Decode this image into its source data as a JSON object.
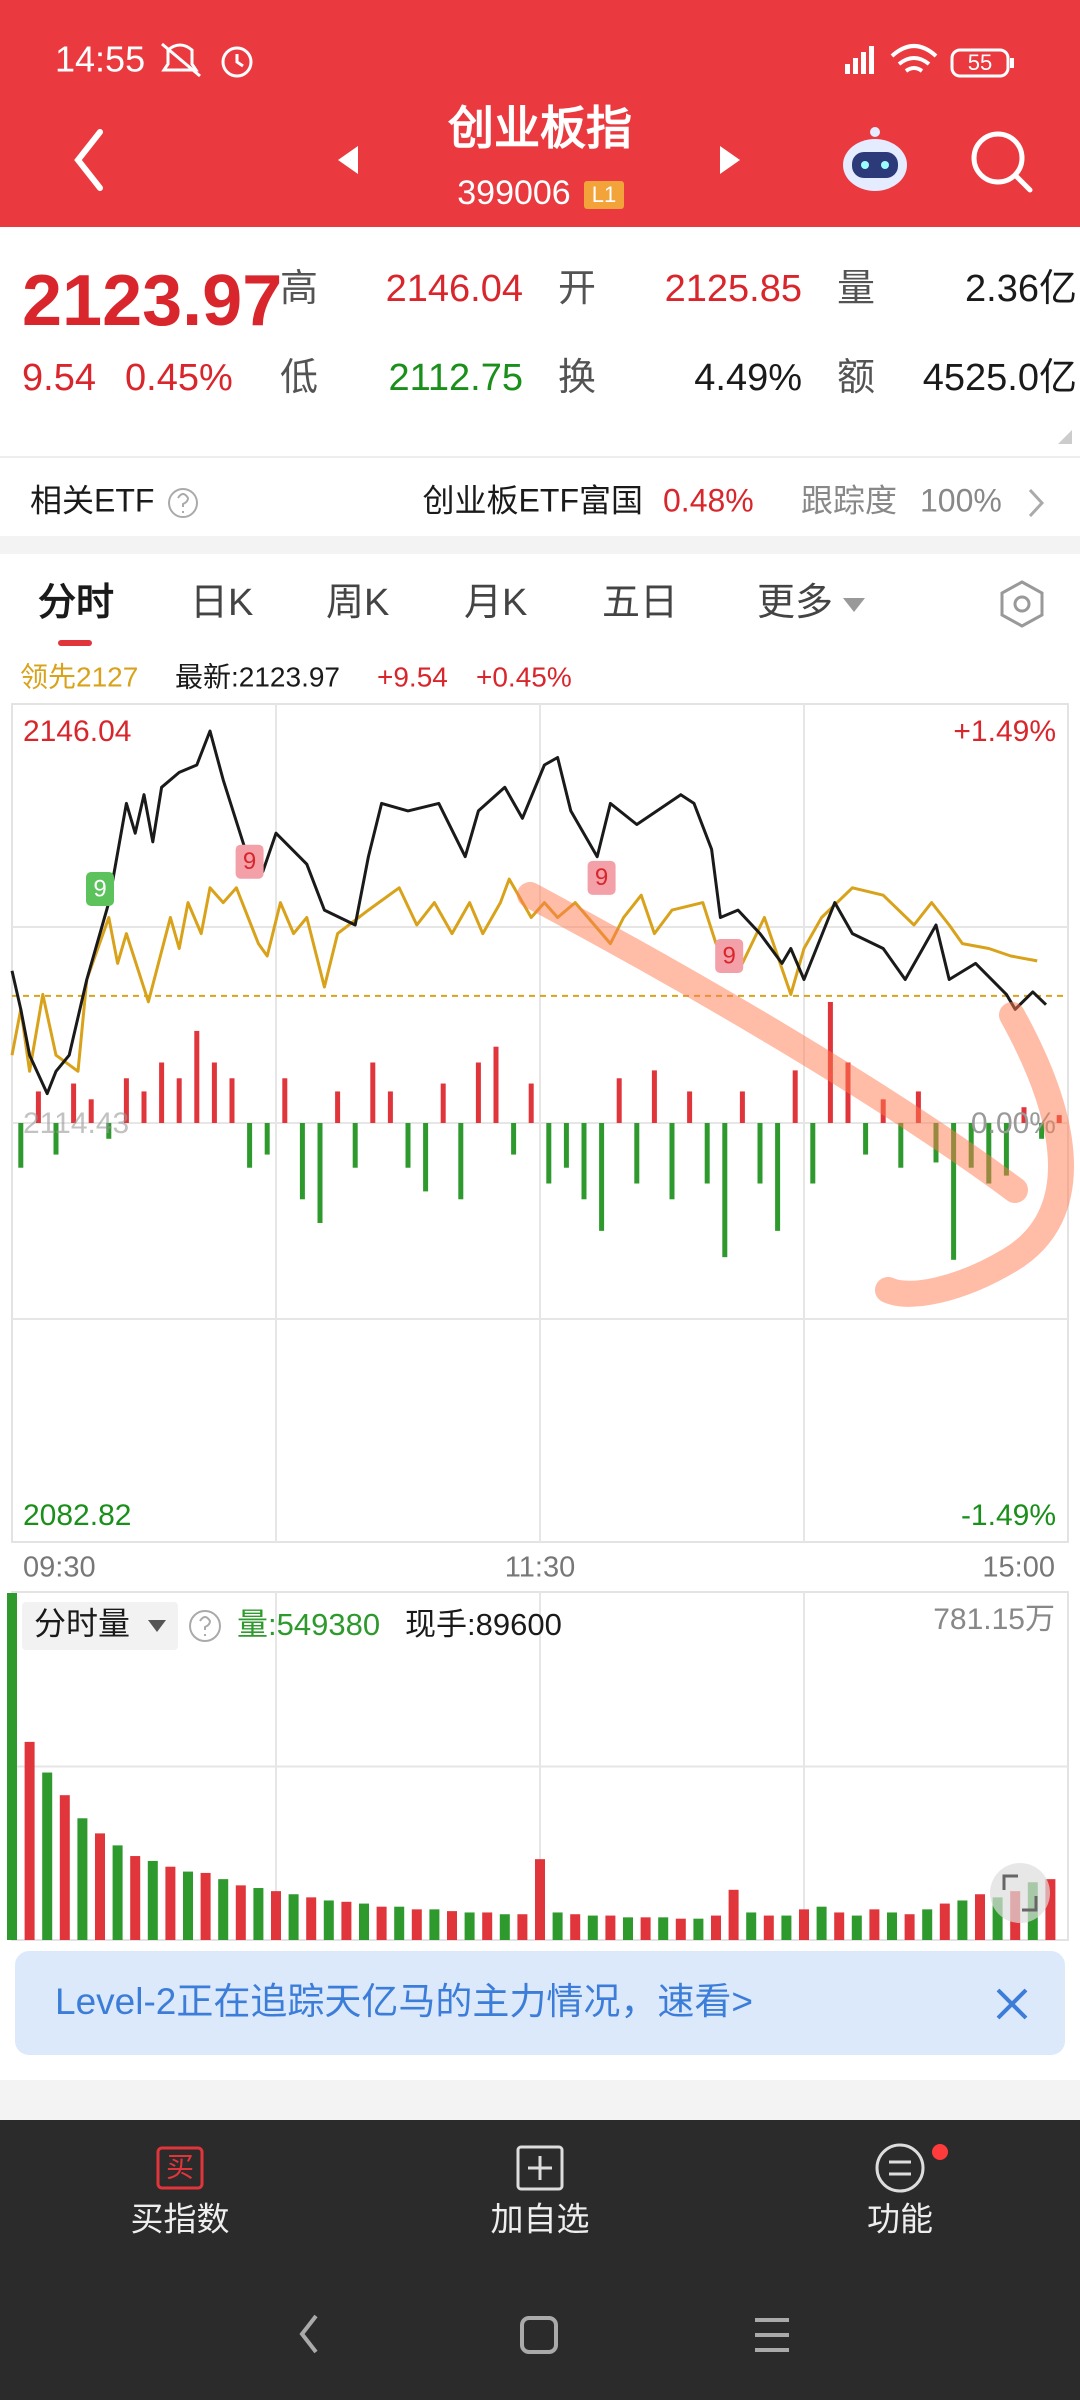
{
  "status": {
    "time": "14:55",
    "battery": "55"
  },
  "header": {
    "title": "创业板指",
    "code": "399006",
    "badge": "L1"
  },
  "quote": {
    "price": "2123.97",
    "change": "9.54",
    "percent": "0.45%",
    "stats": [
      {
        "label": "高",
        "value": "2146.04"
      },
      {
        "label": "开",
        "value": "2125.85"
      },
      {
        "label": "量",
        "value": "2.36亿"
      },
      {
        "label": "低",
        "value": "2112.75"
      },
      {
        "label": "换",
        "value": "4.49%"
      },
      {
        "label": "额",
        "value": "4525.0亿"
      }
    ]
  },
  "etf": {
    "label": "相关ETF",
    "name": "创业板ETF富国",
    "percent": "0.48%",
    "track_label": "跟踪度",
    "track": "100%"
  },
  "tabs": [
    "分时",
    "日K",
    "周K",
    "月K",
    "五日",
    "更多"
  ],
  "chart_data": [
    {
      "type": "line",
      "legend_change": "+9.54",
      "legend_percent": "+0.45%",
      "xlim": [
        0,
        240
      ],
      "xticks": [
        {
          "value": 0,
          "label": "09:30"
        },
        {
          "value": 120,
          "label": "11:30"
        },
        {
          "value": 240,
          "label": "15:00"
        }
      ],
      "xgrid": [
        60,
        120,
        180
      ],
      "ylim": [
        2082.82,
        2146.04
      ],
      "yticks": [
        2146.04,
        2114.43,
        2082.82
      ],
      "y2lim": [
        -1.49,
        1.49
      ],
      "y2ticks": [
        {
          "value": 1.49,
          "label": "+1.49%"
        },
        {
          "value": 0,
          "label": "0.00%"
        },
        {
          "value": -1.49,
          "label": "-1.49%"
        }
      ],
      "y2grid": [
        0.745,
        0,
        -0.745
      ],
      "ref_line": 2124.68,
      "ref_color": "#d9a21b",
      "up_color": "#e0353b",
      "down_color": "#2e9a2e",
      "series": [
        {
          "name": "领先2127",
          "color": "#d9a21b",
          "x": [
            0,
            2,
            4,
            7,
            10,
            15,
            17,
            22,
            24,
            26,
            31,
            36,
            38,
            40,
            43,
            45,
            48,
            51,
            56,
            58,
            61,
            64,
            67,
            71,
            74,
            81,
            88,
            92,
            96,
            100,
            104,
            107,
            111,
            113,
            118,
            121,
            124,
            128,
            136,
            139,
            143,
            146,
            150,
            157,
            160,
            166,
            171,
            177,
            180,
            184,
            191,
            198,
            205,
            209,
            213,
            216,
            222,
            227,
            233
          ],
          "values": [
            2119.9,
            2123.6,
            2118.6,
            2124.8,
            2119.9,
            2118.6,
            2126.0,
            2131.0,
            2127.3,
            2129.7,
            2124.2,
            2131.0,
            2128.5,
            2132.2,
            2129.7,
            2133.4,
            2132.2,
            2133.4,
            2128.9,
            2127.9,
            2132.2,
            2129.7,
            2131.0,
            2125.4,
            2129.7,
            2131.6,
            2133.4,
            2130.4,
            2132.2,
            2129.7,
            2132.2,
            2129.7,
            2132.2,
            2134.1,
            2131.0,
            2132.2,
            2131.0,
            2132.2,
            2128.9,
            2131.0,
            2132.8,
            2129.7,
            2131.6,
            2132.2,
            2128.9,
            2127.3,
            2131.0,
            2124.8,
            2128.5,
            2131.0,
            2133.4,
            2132.8,
            2130.4,
            2132.2,
            2130.4,
            2128.9,
            2128.5,
            2127.9,
            2127.5
          ]
        },
        {
          "name": "最新:2123.97",
          "color": "#1a1a1a",
          "x": [
            0,
            2,
            4,
            8,
            10,
            13,
            17,
            22,
            26,
            28,
            30,
            32,
            34,
            38,
            42,
            45,
            48,
            53,
            57,
            60,
            67,
            71,
            78,
            81,
            84,
            90,
            97,
            103,
            106,
            112,
            116,
            121,
            124,
            127,
            133,
            136,
            142,
            152,
            155,
            159,
            161,
            165,
            170,
            175,
            177,
            180,
            187,
            191,
            198,
            203,
            207,
            210,
            213,
            219,
            226,
            228,
            232,
            235
          ],
          "values": [
            2126.7,
            2123.6,
            2119.9,
            2116.8,
            2118.6,
            2119.9,
            2126.0,
            2132.2,
            2140.2,
            2137.8,
            2140.9,
            2137.1,
            2141.5,
            2142.7,
            2143.3,
            2146.04,
            2142.1,
            2136.5,
            2134.7,
            2137.8,
            2135.3,
            2131.6,
            2130.4,
            2135.9,
            2140.2,
            2139.6,
            2140.2,
            2135.9,
            2139.6,
            2141.5,
            2139.0,
            2143.3,
            2143.9,
            2139.6,
            2135.9,
            2140.2,
            2138.5,
            2140.9,
            2140.2,
            2136.5,
            2131.0,
            2131.6,
            2129.7,
            2127.3,
            2128.5,
            2126.0,
            2132.2,
            2129.7,
            2128.5,
            2126.0,
            2128.5,
            2130.4,
            2126.0,
            2127.3,
            2124.8,
            2123.6,
            2125.0,
            2123.97
          ]
        },
        {
          "type": "bar",
          "axis": "y2",
          "x": [
            2,
            6,
            10,
            14,
            18,
            22,
            26,
            30,
            34,
            38,
            42,
            46,
            50,
            54,
            58,
            62,
            66,
            70,
            74,
            78,
            82,
            86,
            90,
            94,
            98,
            102,
            106,
            110,
            114,
            118,
            122,
            126,
            130,
            134,
            138,
            142,
            146,
            150,
            154,
            158,
            162,
            166,
            170,
            174,
            178,
            182,
            186,
            190,
            194,
            198,
            202,
            206,
            210,
            214,
            218,
            222,
            226,
            230,
            234,
            238
          ],
          "values": [
            -0.17,
            0.12,
            -0.12,
            0.15,
            0.09,
            -0.06,
            0.17,
            0.12,
            0.23,
            0.17,
            0.35,
            0.23,
            0.17,
            -0.17,
            -0.12,
            0.17,
            -0.29,
            -0.38,
            0.12,
            -0.17,
            0.23,
            0.12,
            -0.17,
            -0.26,
            0.15,
            -0.29,
            0.23,
            0.29,
            -0.12,
            0.15,
            -0.23,
            -0.17,
            -0.29,
            -0.41,
            0.17,
            -0.23,
            0.2,
            -0.29,
            0.12,
            -0.23,
            -0.51,
            0.12,
            -0.23,
            -0.41,
            0.2,
            -0.23,
            0.46,
            0.23,
            -0.12,
            0.09,
            -0.17,
            0.12,
            -0.15,
            -0.52,
            -0.17,
            -0.23,
            -0.2,
            0.06,
            -0.06,
            0.03
          ]
        }
      ],
      "markers": [
        {
          "x": 20,
          "y": 2133.3,
          "label": "9",
          "color": "#5cc25c"
        },
        {
          "x": 54,
          "y": 2135.5,
          "label": "9",
          "color": "#f4a0a8"
        },
        {
          "x": 134,
          "y": 2134.2,
          "label": "9",
          "color": "#f4a0a8"
        },
        {
          "x": 163,
          "y": 2127.9,
          "label": "9",
          "color": "#f4a0a8"
        }
      ]
    },
    {
      "type": "bar",
      "title": "分时量",
      "volume_label": "量:549380",
      "hand_label": "现手:89600",
      "xlim": [
        0,
        240
      ],
      "xgrid": [
        60,
        120,
        180
      ],
      "ylim": [
        0,
        781.15
      ],
      "yticks": [
        {
          "value": 781.15,
          "label": "781.15万"
        }
      ],
      "ygrid": [
        390.58
      ],
      "series": [
        {
          "color": "#e0353b",
          "x": [
            4,
            12,
            20,
            28,
            36,
            44,
            52,
            60,
            68,
            76,
            84,
            92,
            100,
            108,
            116,
            120,
            128,
            136,
            144,
            152,
            160,
            164,
            172,
            180,
            188,
            196,
            204,
            212,
            220,
            228,
            236
          ],
          "values": [
            446,
            326,
            240,
            189,
            165,
            151,
            123,
            110,
            96,
            86,
            75,
            69,
            65,
            62,
            58,
            182,
            58,
            55,
            51,
            48,
            55,
            113,
            55,
            69,
            62,
            69,
            58,
            82,
            103,
            110,
            137
          ]
        },
        {
          "color": "#2e9a2e",
          "x": [
            0,
            8,
            16,
            24,
            32,
            40,
            48,
            56,
            64,
            72,
            80,
            88,
            96,
            104,
            112,
            124,
            132,
            140,
            148,
            156,
            168,
            176,
            184,
            192,
            200,
            208,
            216,
            224,
            232
          ],
          "values": [
            781.15,
            377,
            274,
            213,
            178,
            154,
            137,
            117,
            103,
            89,
            82,
            75,
            69,
            62,
            58,
            62,
            55,
            51,
            51,
            48,
            62,
            55,
            75,
            55,
            62,
            69,
            89,
            96,
            130
          ]
        }
      ]
    }
  ],
  "banner": {
    "text": "Level-2正在追踪天亿马的主力情况，速看>"
  },
  "nav": {
    "buy_icon": "买",
    "items": [
      "买指数",
      "加自选",
      "功能"
    ]
  }
}
